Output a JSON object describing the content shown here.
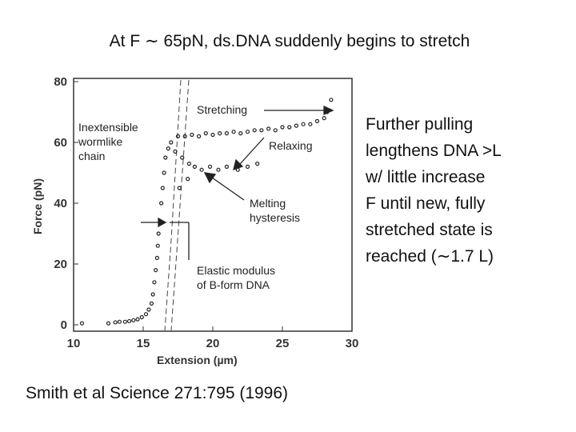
{
  "slide": {
    "title": "At F ∼ 65pN, ds.DNA suddenly begins to stretch",
    "note": [
      "Further pulling",
      "lengthens DNA >L",
      "w/ little increase",
      "F until new, fully",
      "stretched state is",
      "reached (∼1.7 L)"
    ],
    "citation": "Smith et al Science  271:795 (1996)"
  },
  "chart_data": {
    "type": "scatter",
    "xlabel": "Extension (µm)",
    "ylabel": "Force (pN)",
    "xlim": [
      10,
      30
    ],
    "ylim": [
      0,
      80
    ],
    "xticks": [
      10,
      15,
      20,
      25,
      30
    ],
    "yticks": [
      0,
      20,
      40,
      60,
      80
    ],
    "color": "#222222",
    "grid": false,
    "annotations": [
      [
        "Stretching"
      ],
      [
        "Relaxing"
      ],
      [
        "Inextensible",
        "wormlike",
        "chain"
      ],
      [
        "Melting",
        "hysteresis"
      ],
      [
        "Elastic modulus",
        "of B-form DNA"
      ]
    ],
    "x": [
      10.6,
      12.5,
      13,
      13.3,
      13.7,
      14,
      14.3,
      14.6,
      14.9,
      15.2,
      15.4,
      15.6,
      15.7,
      15.8,
      15.9,
      16.0,
      16.05,
      16.1,
      16.2,
      16.3,
      16.4,
      16.5,
      16.6,
      16.8,
      17.0,
      17.5,
      18,
      18.5,
      19,
      19.5,
      20,
      20.5,
      21,
      21.5,
      22,
      22.5,
      23,
      23.5,
      24,
      24.5,
      25,
      25.5,
      26,
      26.5,
      27,
      27.5,
      28,
      28.2,
      28.5,
      17.3,
      17.8,
      18.3,
      18.7,
      19.2,
      19.8,
      20.4,
      21,
      21.8,
      22.5,
      23.2,
      17.6,
      18.2
    ],
    "values": [
      0.5,
      0.5,
      0.8,
      1,
      1,
      1.2,
      1.5,
      1.8,
      2.5,
      3.5,
      5,
      7,
      10,
      14,
      18,
      22,
      26,
      30,
      34,
      40,
      45,
      50,
      55,
      58,
      60,
      62,
      62,
      62.5,
      62,
      63,
      62.5,
      63,
      63,
      63.5,
      63,
      63.5,
      64,
      64,
      64.5,
      64,
      65,
      65,
      65.5,
      66,
      66,
      67,
      68,
      70,
      74,
      57,
      55,
      53,
      52,
      51,
      52,
      51,
      52,
      51,
      52,
      53,
      45,
      48
    ]
  }
}
